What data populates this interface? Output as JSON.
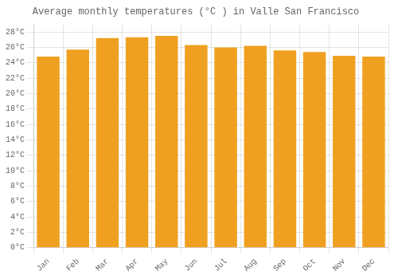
{
  "chart_data": {
    "type": "bar",
    "title": "Average monthly temperatures (°C ) in Valle San Francisco",
    "categories": [
      "Jan",
      "Feb",
      "Mar",
      "Apr",
      "May",
      "Jun",
      "Jul",
      "Aug",
      "Sep",
      "Oct",
      "Nov",
      "Dec"
    ],
    "values": [
      24.8,
      25.7,
      27.2,
      27.3,
      27.5,
      26.3,
      26.0,
      26.2,
      25.6,
      25.4,
      24.9,
      24.8
    ],
    "color": "#F0A020",
    "ylim": [
      0,
      29
    ],
    "yticks": [
      {
        "value": 0,
        "label": "0°C"
      },
      {
        "value": 2,
        "label": "2°C"
      },
      {
        "value": 4,
        "label": "4°C"
      },
      {
        "value": 6,
        "label": "6°C"
      },
      {
        "value": 8,
        "label": "8°C"
      },
      {
        "value": 10,
        "label": "10°C"
      },
      {
        "value": 12,
        "label": "12°C"
      },
      {
        "value": 14,
        "label": "14°C"
      },
      {
        "value": 16,
        "label": "16°C"
      },
      {
        "value": 18,
        "label": "18°C"
      },
      {
        "value": 20,
        "label": "20°C"
      },
      {
        "value": 22,
        "label": "22°C"
      },
      {
        "value": 24,
        "label": "24°C"
      },
      {
        "value": 26,
        "label": "26°C"
      },
      {
        "value": 28,
        "label": "28°C"
      }
    ],
    "grid": true
  }
}
